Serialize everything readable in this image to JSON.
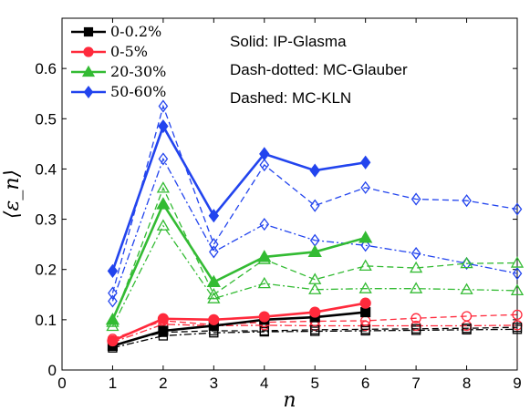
{
  "chart_data": {
    "type": "line",
    "xlabel": "n",
    "ylabel": "⟨ε_n⟩",
    "xlim": [
      0,
      9
    ],
    "ylim": [
      0,
      0.7
    ],
    "x_ticks": [
      "0",
      "1",
      "2",
      "3",
      "4",
      "5",
      "6",
      "7",
      "8",
      "9"
    ],
    "y_ticks": [
      "0",
      "0.1",
      "0.2",
      "0.3",
      "0.4",
      "0.5",
      "0.6"
    ],
    "legend_position": "top-left",
    "annotations": [
      "Solid: IP-Glasma",
      "Dash-dotted: MC-Glauber",
      "Dashed: MC-KLN"
    ],
    "legend": [
      {
        "label": "0-0.2%",
        "color": "#000000",
        "marker": "square"
      },
      {
        "label": "0-5%",
        "color": "#ff2a3c",
        "marker": "circle"
      },
      {
        "label": "20-30%",
        "color": "#33bb33",
        "marker": "triangle"
      },
      {
        "label": "50-60%",
        "color": "#2244ee",
        "marker": "diamond"
      }
    ],
    "series": [
      {
        "model": "IP-Glasma",
        "centrality": "0-0.2%",
        "color": "#000000",
        "marker": "square",
        "dash": "solid",
        "filled": true,
        "x": [
          1,
          2,
          3,
          4,
          5,
          6
        ],
        "y": [
          0.048,
          0.078,
          0.088,
          0.1,
          0.105,
          0.115
        ]
      },
      {
        "model": "IP-Glasma",
        "centrality": "0-5%",
        "color": "#ff2a3c",
        "marker": "circle",
        "dash": "solid",
        "filled": true,
        "x": [
          1,
          2,
          3,
          4,
          5,
          6
        ],
        "y": [
          0.058,
          0.102,
          0.1,
          0.106,
          0.115,
          0.133
        ]
      },
      {
        "model": "IP-Glasma",
        "centrality": "20-30%",
        "color": "#33bb33",
        "marker": "triangle",
        "dash": "solid",
        "filled": true,
        "x": [
          1,
          2,
          3,
          4,
          5,
          6
        ],
        "y": [
          0.1,
          0.33,
          0.175,
          0.225,
          0.235,
          0.263
        ]
      },
      {
        "model": "IP-Glasma",
        "centrality": "50-60%",
        "color": "#2244ee",
        "marker": "diamond",
        "dash": "solid",
        "filled": true,
        "x": [
          1,
          2,
          3,
          4,
          5,
          6
        ],
        "y": [
          0.197,
          0.485,
          0.307,
          0.43,
          0.397,
          0.413
        ]
      },
      {
        "model": "MC-Glauber",
        "centrality": "0-0.2%",
        "color": "#000000",
        "marker": "square",
        "dash": "dashdot",
        "filled": false,
        "x": [
          1,
          2,
          3,
          4,
          5,
          6,
          7,
          8,
          9
        ],
        "y": [
          0.044,
          0.068,
          0.074,
          0.076,
          0.077,
          0.078,
          0.079,
          0.08,
          0.081
        ]
      },
      {
        "model": "MC-Glauber",
        "centrality": "0-5%",
        "color": "#ff2a3c",
        "marker": "circle",
        "dash": "dashdot",
        "filled": false,
        "x": [
          1,
          2,
          3,
          4,
          5,
          6,
          7,
          8,
          9
        ],
        "y": [
          0.055,
          0.091,
          0.088,
          0.089,
          0.088,
          0.088,
          0.088,
          0.088,
          0.089
        ]
      },
      {
        "model": "MC-Glauber",
        "centrality": "20-30%",
        "color": "#33bb33",
        "marker": "triangle",
        "dash": "dashdot",
        "filled": false,
        "x": [
          1,
          2,
          3,
          4,
          5,
          6,
          7,
          8,
          9
        ],
        "y": [
          0.087,
          0.287,
          0.142,
          0.172,
          0.16,
          0.162,
          0.162,
          0.16,
          0.158
        ]
      },
      {
        "model": "MC-Glauber",
        "centrality": "50-60%",
        "color": "#2244ee",
        "marker": "diamond",
        "dash": "dashdot",
        "filled": false,
        "x": [
          1,
          2,
          3,
          4,
          5,
          6,
          7,
          8,
          9
        ],
        "y": [
          0.137,
          0.42,
          0.235,
          0.29,
          0.258,
          0.248,
          0.232,
          0.212,
          0.192
        ]
      },
      {
        "model": "MC-KLN",
        "centrality": "0-0.2%",
        "color": "#000000",
        "marker": "square",
        "dash": "dashed",
        "filled": false,
        "x": [
          1,
          2,
          3,
          4,
          5,
          6,
          7,
          8,
          9
        ],
        "y": [
          0.05,
          0.075,
          0.078,
          0.078,
          0.08,
          0.081,
          0.082,
          0.083,
          0.085
        ]
      },
      {
        "model": "MC-KLN",
        "centrality": "0-5%",
        "color": "#ff2a3c",
        "marker": "circle",
        "dash": "dashed",
        "filled": false,
        "x": [
          1,
          2,
          3,
          4,
          5,
          6,
          7,
          8,
          9
        ],
        "y": [
          0.062,
          0.098,
          0.09,
          0.095,
          0.097,
          0.098,
          0.103,
          0.107,
          0.11
        ]
      },
      {
        "model": "MC-KLN",
        "centrality": "20-30%",
        "color": "#33bb33",
        "marker": "triangle",
        "dash": "dashed",
        "filled": false,
        "x": [
          1,
          2,
          3,
          4,
          5,
          6,
          7,
          8,
          9
        ],
        "y": [
          0.095,
          0.362,
          0.15,
          0.22,
          0.18,
          0.207,
          0.203,
          0.212,
          0.213
        ]
      },
      {
        "model": "MC-KLN",
        "centrality": "50-60%",
        "color": "#2244ee",
        "marker": "diamond",
        "dash": "dashed",
        "filled": false,
        "x": [
          1,
          2,
          3,
          4,
          5,
          6,
          7,
          8,
          9
        ],
        "y": [
          0.153,
          0.525,
          0.25,
          0.408,
          0.327,
          0.363,
          0.34,
          0.337,
          0.32
        ]
      }
    ]
  }
}
